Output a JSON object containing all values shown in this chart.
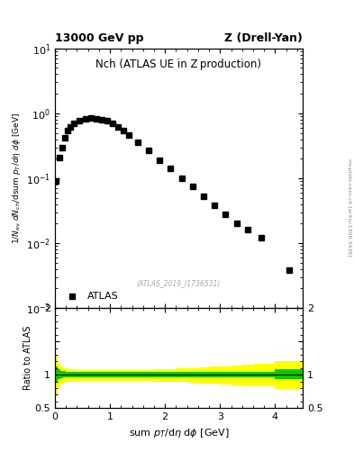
{
  "title_left": "13000 GeV pp",
  "title_right": "Z (Drell-Yan)",
  "plot_title": "Nch (ATLAS UE in Z production)",
  "ylabel_main": "1/N_{ev} dN_{ch}/dsum p_{T}/d#eta d#phi [GeV]",
  "ylabel_ratio": "Ratio to ATLAS",
  "xlabel": "sum p_{T}/d#eta d#phi [GeV]",
  "watermark": "(ATLAS_2019_I1736531)",
  "arxiv_text": "mcplots.cern.ch [arXiv:1306.3436]",
  "legend_label": "ATLAS",
  "data_x": [
    0.025,
    0.075,
    0.125,
    0.175,
    0.225,
    0.275,
    0.35,
    0.45,
    0.55,
    0.65,
    0.75,
    0.85,
    0.95,
    1.05,
    1.15,
    1.25,
    1.35,
    1.5,
    1.7,
    1.9,
    2.1,
    2.3,
    2.5,
    2.7,
    2.9,
    3.1,
    3.3,
    3.5,
    3.75,
    4.25
  ],
  "data_y": [
    0.092,
    0.21,
    0.3,
    0.42,
    0.55,
    0.62,
    0.7,
    0.78,
    0.83,
    0.84,
    0.83,
    0.8,
    0.76,
    0.7,
    0.62,
    0.55,
    0.46,
    0.36,
    0.27,
    0.19,
    0.14,
    0.1,
    0.075,
    0.052,
    0.038,
    0.028,
    0.02,
    0.016,
    0.012,
    0.0038
  ],
  "ratio_x_edges": [
    0.0,
    0.05,
    0.1,
    0.15,
    0.2,
    0.25,
    0.3,
    0.4,
    0.5,
    0.6,
    0.7,
    0.8,
    0.9,
    1.0,
    1.1,
    1.2,
    1.3,
    1.4,
    1.6,
    1.8,
    2.0,
    2.2,
    2.4,
    2.6,
    2.8,
    3.0,
    3.2,
    3.4,
    3.6,
    4.0,
    4.5
  ],
  "ratio_green_upper": [
    1.12,
    1.08,
    1.06,
    1.05,
    1.04,
    1.04,
    1.04,
    1.04,
    1.04,
    1.04,
    1.04,
    1.04,
    1.04,
    1.04,
    1.04,
    1.04,
    1.04,
    1.04,
    1.04,
    1.04,
    1.04,
    1.04,
    1.04,
    1.04,
    1.04,
    1.04,
    1.04,
    1.04,
    1.04,
    1.08
  ],
  "ratio_green_lower": [
    0.88,
    0.93,
    0.95,
    0.96,
    0.96,
    0.96,
    0.96,
    0.96,
    0.96,
    0.96,
    0.96,
    0.96,
    0.96,
    0.96,
    0.96,
    0.96,
    0.96,
    0.96,
    0.96,
    0.96,
    0.96,
    0.96,
    0.96,
    0.96,
    0.96,
    0.96,
    0.96,
    0.96,
    0.96,
    0.93
  ],
  "ratio_yellow_upper": [
    1.28,
    1.18,
    1.13,
    1.1,
    1.09,
    1.08,
    1.08,
    1.07,
    1.07,
    1.07,
    1.07,
    1.07,
    1.07,
    1.07,
    1.07,
    1.07,
    1.07,
    1.07,
    1.07,
    1.08,
    1.08,
    1.09,
    1.1,
    1.11,
    1.12,
    1.13,
    1.14,
    1.15,
    1.16,
    1.2
  ],
  "ratio_yellow_lower": [
    0.68,
    0.8,
    0.86,
    0.88,
    0.89,
    0.9,
    0.9,
    0.91,
    0.91,
    0.91,
    0.91,
    0.91,
    0.91,
    0.91,
    0.91,
    0.91,
    0.91,
    0.91,
    0.91,
    0.9,
    0.9,
    0.89,
    0.88,
    0.87,
    0.86,
    0.85,
    0.84,
    0.83,
    0.82,
    0.78
  ],
  "xlim": [
    0,
    4.5
  ],
  "ylim_main": [
    0.001,
    10
  ],
  "ylim_ratio": [
    0.5,
    2.0
  ],
  "color_data": "#000000",
  "color_green": "#00CC00",
  "color_yellow": "#FFFF00",
  "color_line": "#000000",
  "marker": "s",
  "markersize": 4,
  "background": "#ffffff"
}
